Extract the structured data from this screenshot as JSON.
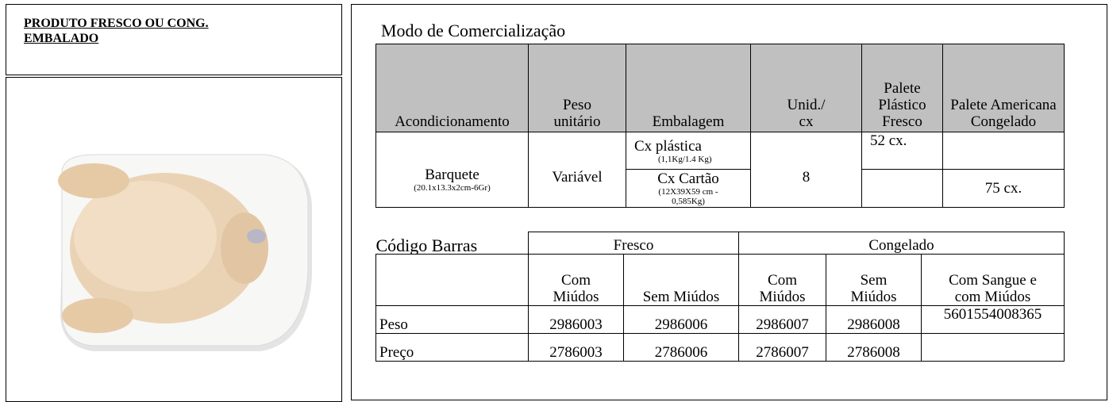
{
  "left_panel": {
    "title": "PRODUTO FRESCO OU CONG. EMBALADO"
  },
  "commercialization": {
    "title": "Modo de Comercialização",
    "headers": [
      "Acondicionamento",
      "Peso unitário",
      "Embalagem",
      "Unid./ cx",
      "Palete Plástico Fresco",
      "Palete Americana Congelado"
    ],
    "row": {
      "acondicionamento": "Barquete",
      "acondicionamento_note": "(20.1x13.3x2cm-6Gr)",
      "peso": "Variável",
      "unid": "8",
      "embalagens": [
        {
          "name": "Cx plástica",
          "note": "(1,1Kg/1.4 Kg)",
          "palete_plastico": "52 cx."
        },
        {
          "name": "Cx Cartão",
          "note": "(12X39X59 cm - 0,585Kg)",
          "palete_americana": "75 cx."
        }
      ]
    }
  },
  "barcodes": {
    "title": "Código Barras",
    "groups": [
      "Fresco",
      "Congelado"
    ],
    "columns": [
      "Com Miúdos",
      "Sem Miúdos",
      "Com Miúdos",
      "Sem Miúdos",
      "Com Sangue e com Miúdos"
    ],
    "rows": [
      {
        "label": "Peso",
        "values": [
          "2986003",
          "2986006",
          "2986007",
          "2986008",
          "5601554008365"
        ]
      },
      {
        "label": "Preço",
        "values": [
          "2786003",
          "2786006",
          "2786007",
          "2786008"
        ]
      }
    ]
  }
}
